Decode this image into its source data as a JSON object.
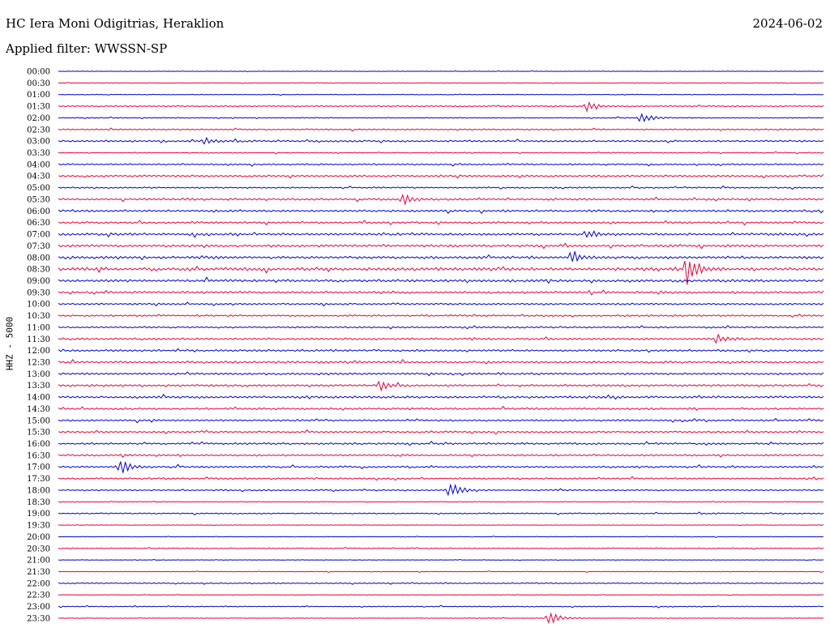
{
  "header": {
    "station": "HC Iera Moni Odigitrias, Heraklion",
    "date": "2024-06-02",
    "filter": "Applied filter: WWSSN-SP"
  },
  "chart_data": {
    "type": "line",
    "title": "HC Iera Moni Odigitrias, Heraklion",
    "ylabel": "HHZ - 5000",
    "rows": [
      "00:00",
      "00:30",
      "01:00",
      "01:30",
      "02:00",
      "02:30",
      "03:00",
      "03:30",
      "04:00",
      "04:30",
      "05:00",
      "05:30",
      "06:00",
      "06:30",
      "07:00",
      "07:30",
      "08:00",
      "08:30",
      "09:00",
      "09:30",
      "10:00",
      "10:30",
      "11:00",
      "11:30",
      "12:00",
      "12:30",
      "13:00",
      "13:30",
      "14:00",
      "14:30",
      "15:00",
      "15:30",
      "16:00",
      "16:30",
      "17:00",
      "17:30",
      "18:00",
      "18:30",
      "19:00",
      "19:30",
      "20:00",
      "20:30",
      "21:00",
      "21:30",
      "22:00",
      "22:30",
      "23:00",
      "23:30"
    ],
    "colors": [
      "#0000cc",
      "#e8003a"
    ],
    "row_noise": [
      0.3,
      0.4,
      0.4,
      0.8,
      0.6,
      0.9,
      1.2,
      0.8,
      1.0,
      1.2,
      1.0,
      1.4,
      1.5,
      1.3,
      1.6,
      1.7,
      1.8,
      2.2,
      1.8,
      1.5,
      1.2,
      1.2,
      1.1,
      1.3,
      1.4,
      1.5,
      1.4,
      1.5,
      1.6,
      1.3,
      1.2,
      1.1,
      1.3,
      1.2,
      1.2,
      1.1,
      0.9,
      0.5,
      0.8,
      0.3,
      0.4,
      0.6,
      0.3,
      0.4,
      0.8,
      0.3,
      0.6,
      0.4
    ],
    "events": [
      {
        "row": "01:30",
        "t": 0.69,
        "amp": 6
      },
      {
        "row": "02:00",
        "t": 0.76,
        "amp": 8
      },
      {
        "row": "03:00",
        "t": 0.19,
        "amp": 5
      },
      {
        "row": "05:30",
        "t": 0.45,
        "amp": 7
      },
      {
        "row": "07:00",
        "t": 0.69,
        "amp": 6
      },
      {
        "row": "08:00",
        "t": 0.67,
        "amp": 7
      },
      {
        "row": "08:30",
        "t": 0.82,
        "amp": 22
      },
      {
        "row": "11:30",
        "t": 0.86,
        "amp": 6
      },
      {
        "row": "13:30",
        "t": 0.42,
        "amp": 6
      },
      {
        "row": "17:00",
        "t": 0.08,
        "amp": 10
      },
      {
        "row": "18:00",
        "t": 0.51,
        "amp": 12
      },
      {
        "row": "23:30",
        "t": 0.64,
        "amp": 10
      }
    ]
  }
}
